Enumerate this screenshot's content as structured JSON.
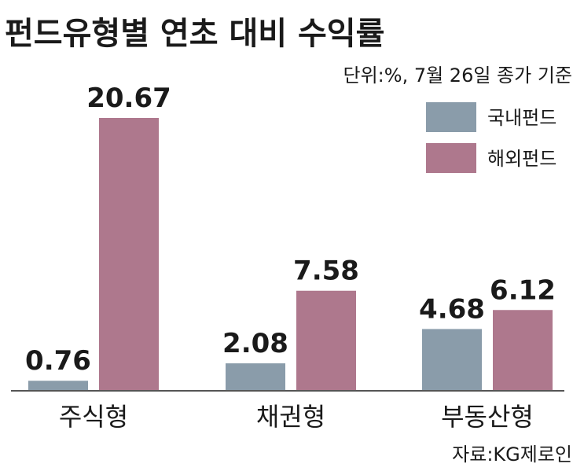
{
  "chart_data": {
    "type": "bar",
    "title": "펀드유형별 연초 대비 수익률",
    "unit_note": "단위:%, 7월 26일 종가 기준",
    "source": "자료:KG제로인",
    "categories": [
      "주식형",
      "채권형",
      "부동산형"
    ],
    "series": [
      {
        "name": "국내펀드",
        "color": "#8a9caa",
        "values": [
          0.76,
          2.08,
          4.68
        ],
        "labels": [
          "0.76",
          "2.08",
          "4.68"
        ]
      },
      {
        "name": "해외펀드",
        "color": "#ae788d",
        "values": [
          20.67,
          7.58,
          6.12
        ],
        "labels": [
          "20.67",
          "7.58",
          "6.12"
        ]
      }
    ],
    "ylim": [
      0,
      20.67
    ],
    "grid": false,
    "legend_position": "top-right"
  }
}
